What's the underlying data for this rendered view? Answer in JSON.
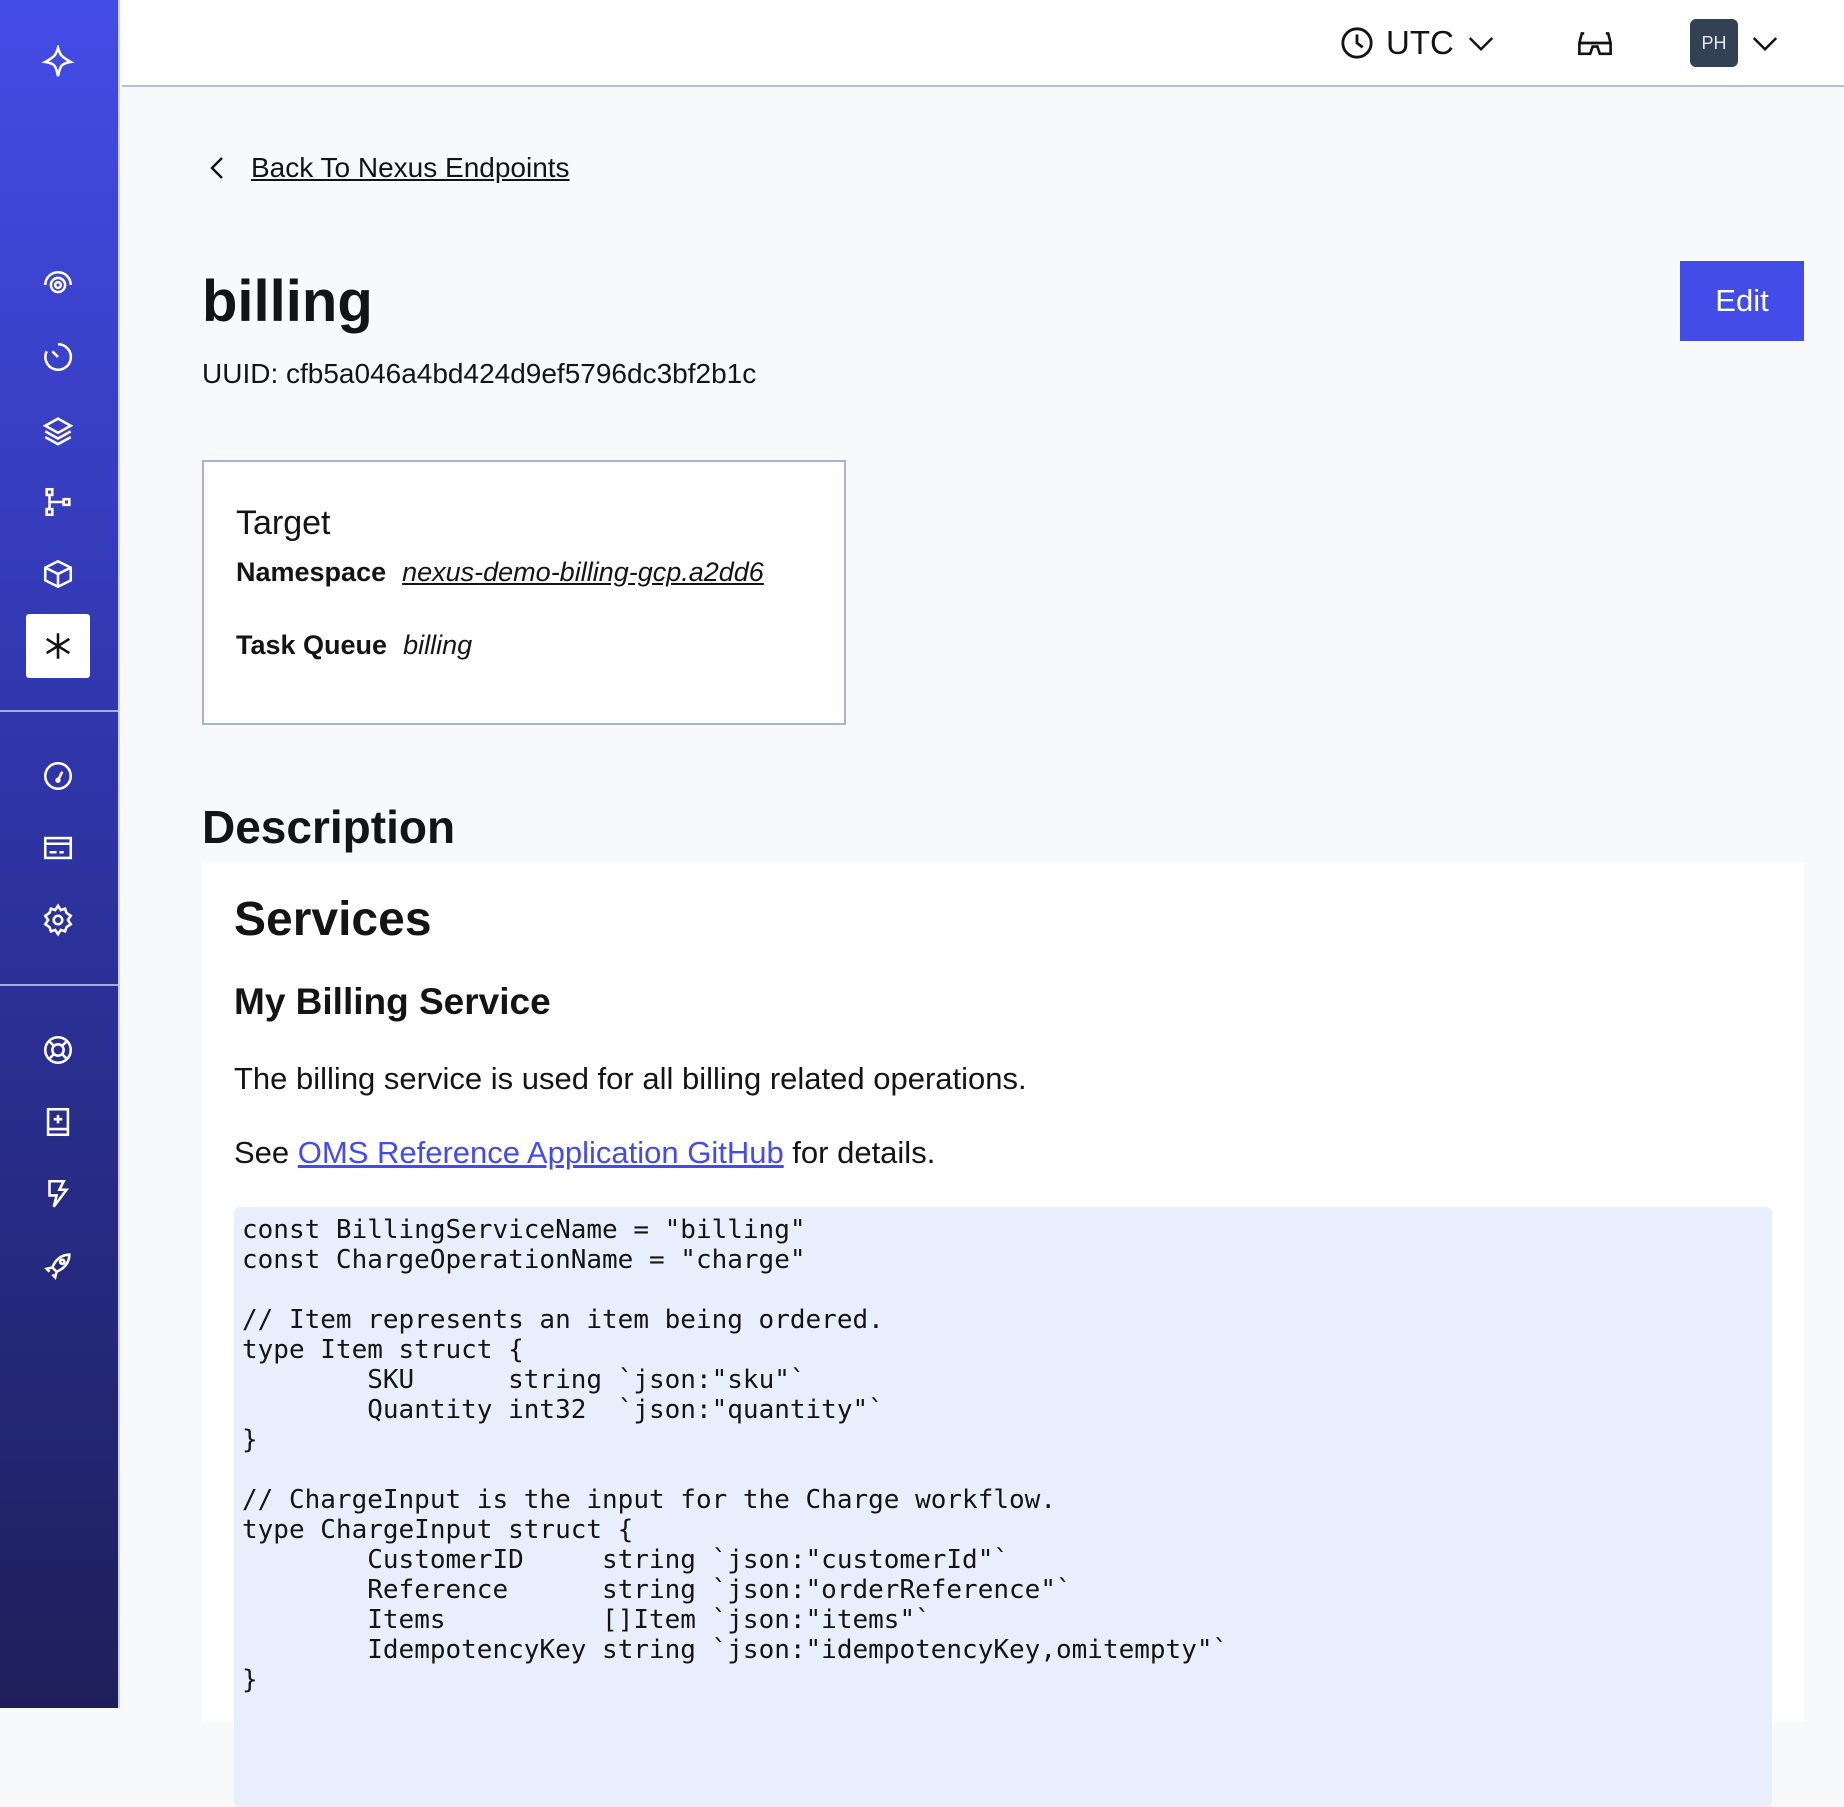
{
  "sidebar": {
    "items": [
      {
        "icon": "workflows-icon"
      },
      {
        "icon": "schedules-icon"
      },
      {
        "icon": "namespaces-icon"
      },
      {
        "icon": "workers-icon"
      },
      {
        "icon": "batch-icon"
      },
      {
        "icon": "nexus-icon",
        "active": true
      },
      {
        "icon": "usage-icon"
      },
      {
        "icon": "billing-icon"
      },
      {
        "icon": "settings-icon"
      },
      {
        "icon": "support-icon"
      },
      {
        "icon": "docs-icon"
      },
      {
        "icon": "feature-icon"
      },
      {
        "icon": "get-started-icon"
      }
    ]
  },
  "header": {
    "timezone": "UTC",
    "avatar_initials": "PH"
  },
  "back_link": "Back To Nexus Endpoints",
  "endpoint": {
    "name": "billing",
    "uuid": "UUID: cfb5a046a4bd424d9ef5796dc3bf2b1c",
    "edit_label": "Edit"
  },
  "target": {
    "title": "Target",
    "namespace_label": "Namespace",
    "namespace": "nexus-demo-billing-gcp.a2dd6",
    "task_queue_label": "Task Queue",
    "task_queue": "billing"
  },
  "description": {
    "heading": "Description",
    "h1": "Services",
    "h2": "My Billing Service",
    "p1": "The billing service is used for all billing related operations.",
    "p2_before": "See ",
    "p2_link": "OMS Reference Application GitHub",
    "p2_after": " for details.",
    "code": "const BillingServiceName = \"billing\"\nconst ChargeOperationName = \"charge\"\n\n// Item represents an item being ordered.\ntype Item struct {\n\tSKU      string `json:\"sku\"`\n\tQuantity int32  `json:\"quantity\"`\n}\n\n// ChargeInput is the input for the Charge workflow.\ntype ChargeInput struct {\n\tCustomerID     string `json:\"customerId\"`\n\tReference      string `json:\"orderReference\"`\n\tItems          []Item `json:\"items\"`\n\tIdempotencyKey string `json:\"idempotencyKey,omitempty\"`\n}"
  },
  "colors": {
    "accent": "#444ce7",
    "avatar_bg": "#334155",
    "code_bg": "#e8eefc"
  }
}
